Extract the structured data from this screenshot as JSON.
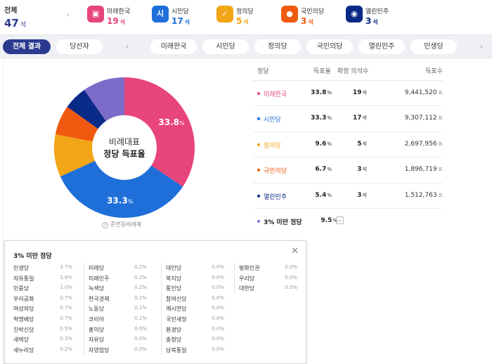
{
  "summary": {
    "label": "전체",
    "total": "47",
    "unit": "석"
  },
  "parties": [
    {
      "name": "미래한국",
      "seats": "19",
      "color": "#e8457a",
      "icon": "flag-icon",
      "glyph": "▣"
    },
    {
      "name": "시민당",
      "seats": "17",
      "color": "#1e6fd9",
      "icon": "citizen-logo-icon",
      "glyph": "시"
    },
    {
      "name": "정의당",
      "seats": "5",
      "color": "#f2a516",
      "icon": "check-icon",
      "glyph": "✓"
    },
    {
      "name": "국민의당",
      "seats": "3",
      "color": "#ef5a10",
      "icon": "three-dots-icon",
      "glyph": "●"
    },
    {
      "name": "열린민주",
      "seats": "3",
      "color": "#0a2a88",
      "icon": "emblem-icon",
      "glyph": "◉"
    }
  ],
  "tabs": [
    {
      "label": "전체 결과",
      "active": true
    },
    {
      "label": "당선자",
      "active": false
    },
    {
      "label": "미래한국",
      "active": false
    },
    {
      "label": "시민당",
      "active": false
    },
    {
      "label": "정의당",
      "active": false
    },
    {
      "label": "국민의당",
      "active": false
    },
    {
      "label": "열린민주",
      "active": false
    },
    {
      "label": "민생당",
      "active": false
    }
  ],
  "chart_data": {
    "type": "pie",
    "center_line1": "비례대표",
    "center_line2": "정당 득표율",
    "slices": [
      {
        "name": "미래한국",
        "value": 33.8,
        "color": "#e8457a",
        "label": "33.8"
      },
      {
        "name": "시민당",
        "value": 33.3,
        "color": "#1e6fd9",
        "label": "33.3"
      },
      {
        "name": "정의당",
        "value": 9.6,
        "color": "#f2a516",
        "label": ""
      },
      {
        "name": "국민의당",
        "value": 6.7,
        "color": "#ef5a10",
        "label": ""
      },
      {
        "name": "열린민주",
        "value": 5.4,
        "color": "#0a2a88",
        "label": ""
      },
      {
        "name": "3% 미만 정당",
        "value": 9.5,
        "color": "#7d6bc9",
        "label": ""
      }
    ],
    "unit": "%"
  },
  "note": "준연동비례제",
  "table": {
    "headers": {
      "party": "정당",
      "rate": "득표율",
      "seats": "확정 의석수",
      "votes": "득표수"
    },
    "rows": [
      {
        "name": "미래한국",
        "rate": "33.8",
        "seats": "19",
        "votes": "9,441,520",
        "color": "#e8457a"
      },
      {
        "name": "시민당",
        "rate": "33.3",
        "seats": "17",
        "votes": "9,307,112",
        "color": "#1e6fd9"
      },
      {
        "name": "정의당",
        "rate": "9.6",
        "seats": "5",
        "votes": "2,697,956",
        "color": "#f2a516"
      },
      {
        "name": "국민의당",
        "rate": "6.7",
        "seats": "3",
        "votes": "1,896,719",
        "color": "#ef5a10"
      },
      {
        "name": "열린민주",
        "rate": "5.4",
        "seats": "3",
        "votes": "1,512,763",
        "color": "#0a2a88"
      },
      {
        "name": "3% 미만 정당",
        "rate": "9.5",
        "seats": "",
        "votes": "",
        "color": "#7d6bc9"
      }
    ],
    "pct_unit": "%",
    "seat_unit": "석",
    "vote_unit": "표"
  },
  "minor": {
    "title": "3% 미만 정당",
    "columns": [
      [
        {
          "n": "민생당",
          "v": "2.7%"
        },
        {
          "n": "자유통일",
          "v": "1.8%"
        },
        {
          "n": "민중당",
          "v": "1.0%"
        },
        {
          "n": "우리공화",
          "v": "0.7%"
        },
        {
          "n": "여성의당",
          "v": "0.7%"
        },
        {
          "n": "혁명배당",
          "v": "0.7%"
        },
        {
          "n": "친박신당",
          "v": "0.5%"
        },
        {
          "n": "새벽당",
          "v": "0.3%"
        },
        {
          "n": "새누리당",
          "v": "0.2%"
        }
      ],
      [
        {
          "n": "미래당",
          "v": "0.2%"
        },
        {
          "n": "미래민주",
          "v": "0.2%"
        },
        {
          "n": "녹색당",
          "v": "0.2%"
        },
        {
          "n": "한국경제",
          "v": "0.1%"
        },
        {
          "n": "노동당",
          "v": "0.1%"
        },
        {
          "n": "코리아",
          "v": "0.1%"
        },
        {
          "n": "홍익당",
          "v": "0.0%"
        },
        {
          "n": "자유당",
          "v": "0.0%"
        },
        {
          "n": "자영업당",
          "v": "0.0%"
        }
      ],
      [
        {
          "n": "대인당",
          "v": "0.0%"
        },
        {
          "n": "복지당",
          "v": "0.0%"
        },
        {
          "n": "통인당",
          "v": "0.0%"
        },
        {
          "n": "참여신당",
          "v": "0.0%"
        },
        {
          "n": "깨시연당",
          "v": "0.0%"
        },
        {
          "n": "국민새정",
          "v": "0.0%"
        },
        {
          "n": "환경당",
          "v": "0.0%"
        },
        {
          "n": "충청당",
          "v": "0.0%"
        },
        {
          "n": "남북통일",
          "v": "0.0%"
        }
      ],
      [
        {
          "n": "평화인권",
          "v": "0.0%"
        },
        {
          "n": "우리당",
          "v": "0.0%"
        },
        {
          "n": "대한당",
          "v": "0.0%"
        }
      ]
    ]
  }
}
